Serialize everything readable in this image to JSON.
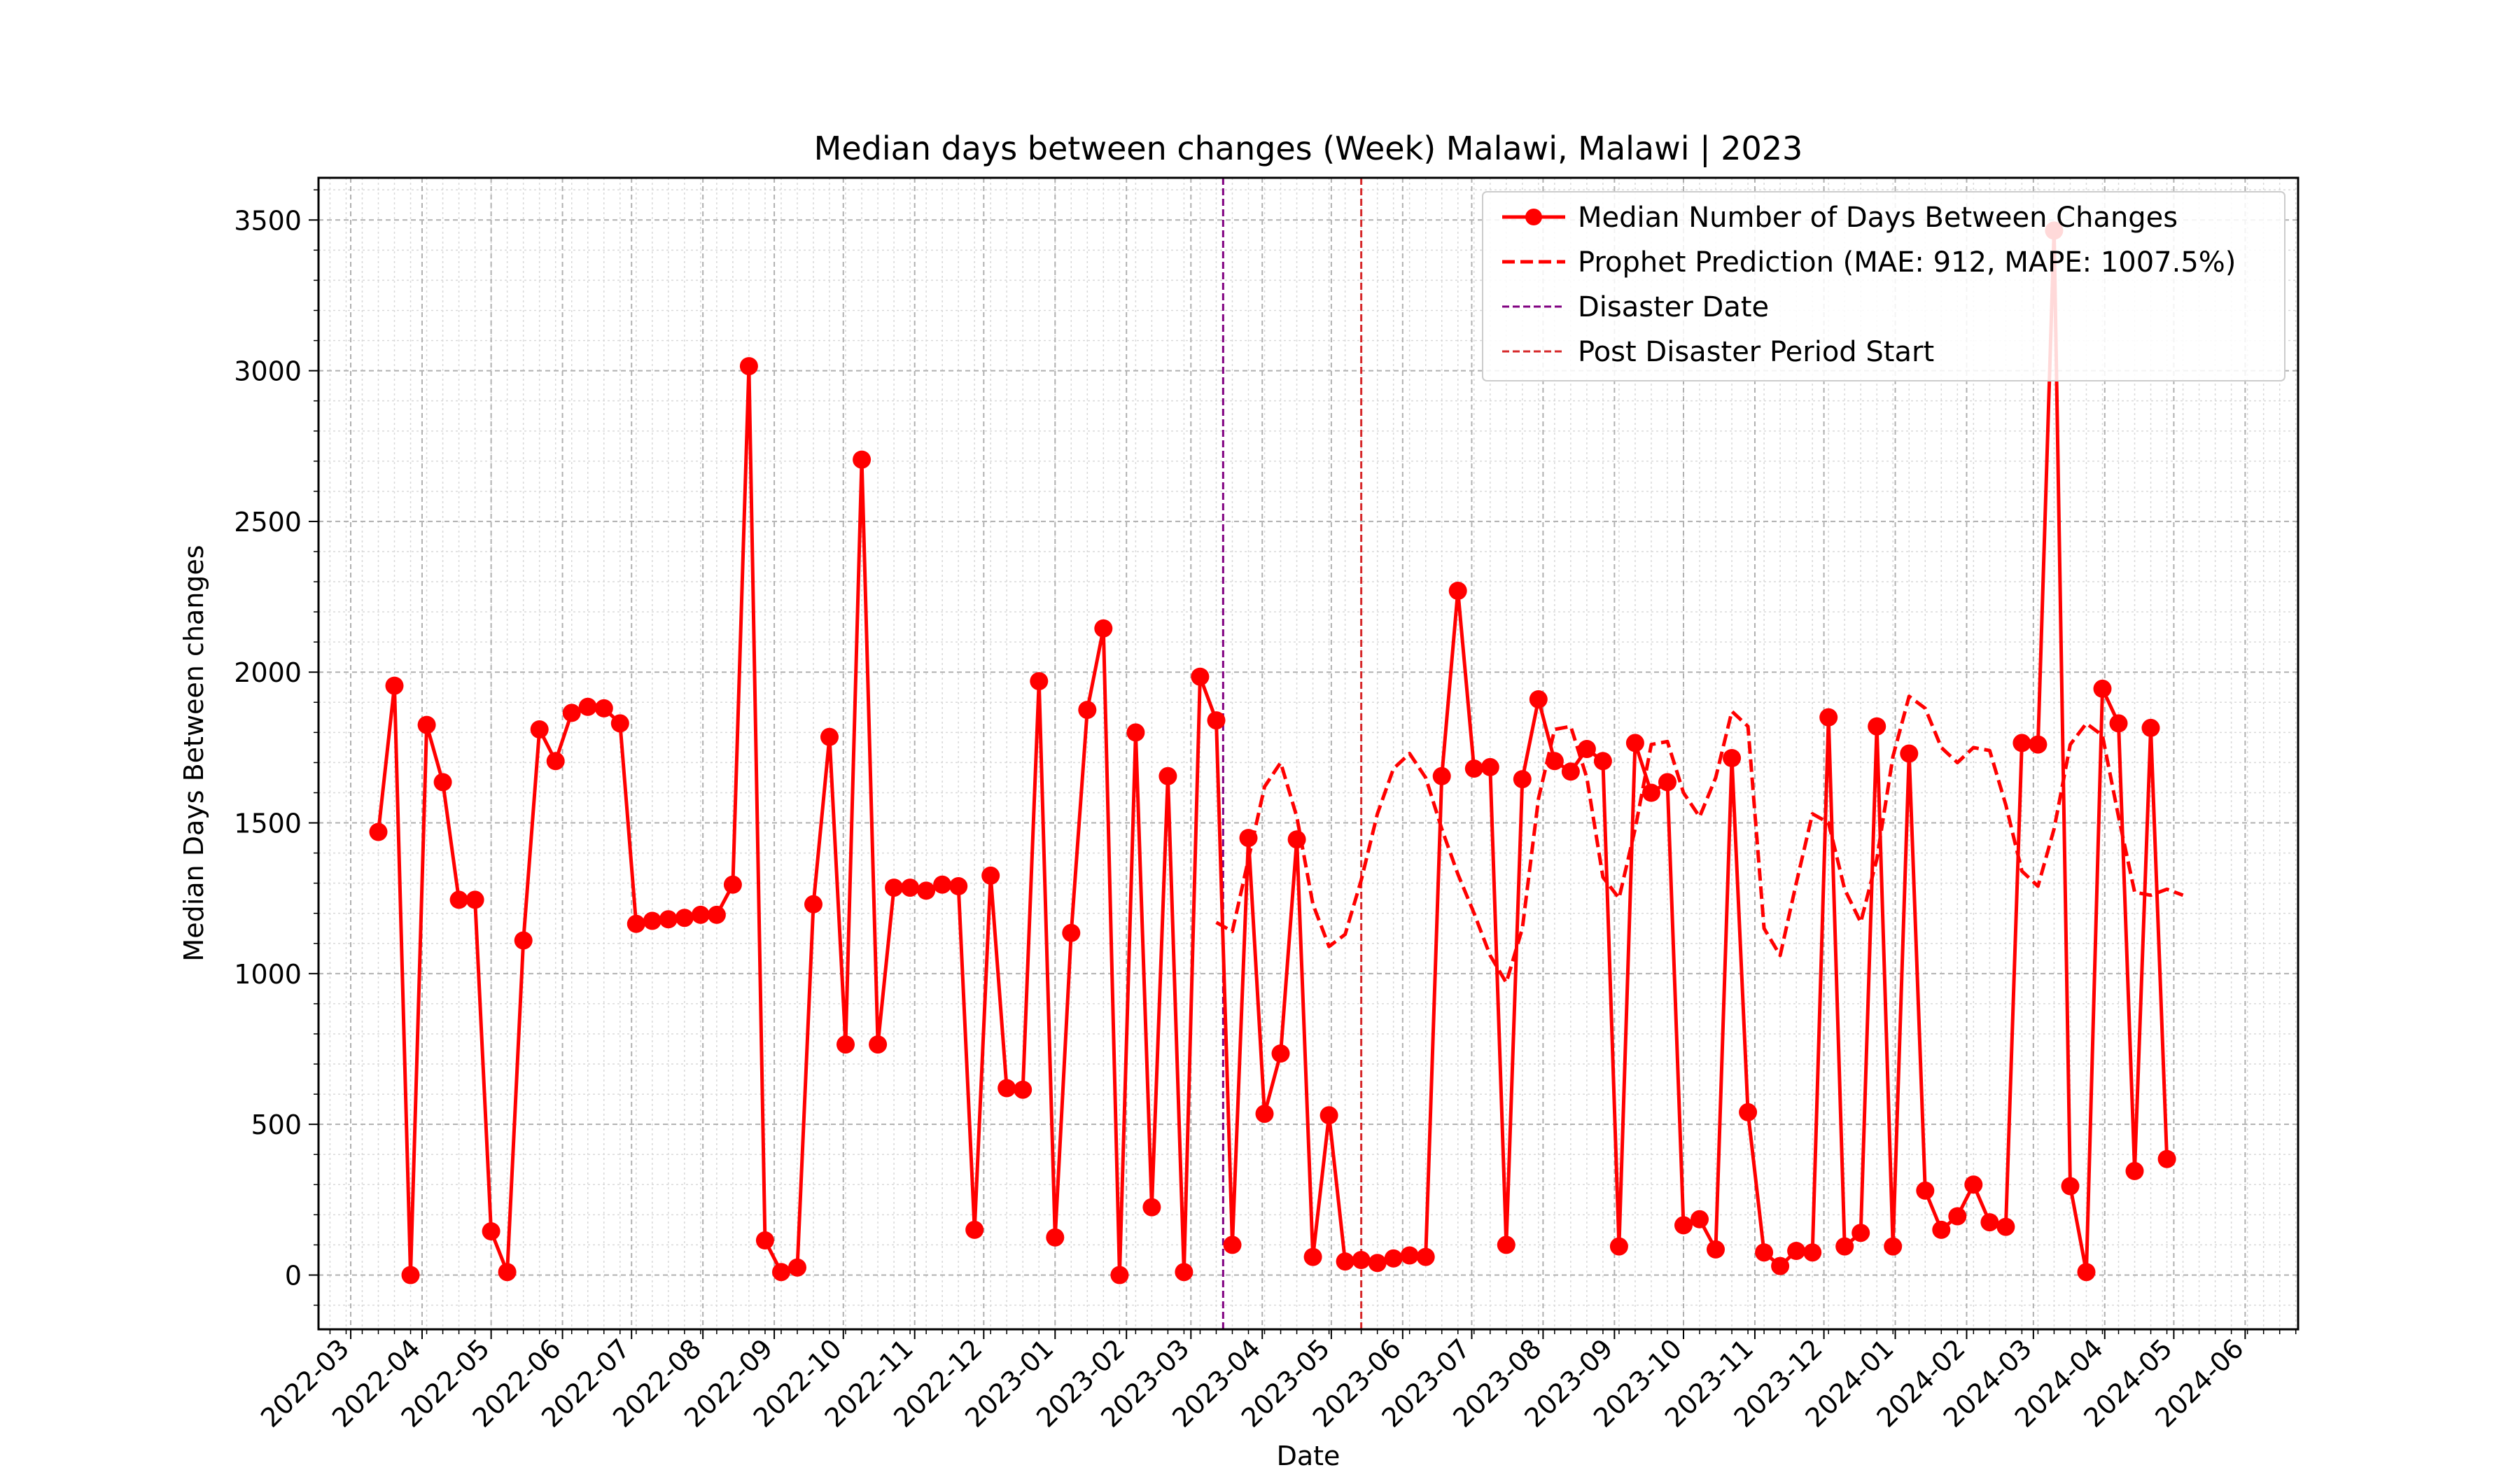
{
  "chart_data": {
    "type": "line",
    "title": "Median days between changes (Week) Malawi, Malawi | 2023",
    "xlabel": "Date",
    "ylabel": "Median Days Between changes",
    "xlim": [
      "2022-02-15",
      "2024-06-24"
    ],
    "ylim": [
      -180,
      3640
    ],
    "yticks": [
      0,
      500,
      1000,
      1500,
      2000,
      2500,
      3000,
      3500
    ],
    "xticks": [
      "2022-03",
      "2022-04",
      "2022-05",
      "2022-06",
      "2022-07",
      "2022-08",
      "2022-09",
      "2022-10",
      "2022-11",
      "2022-12",
      "2023-01",
      "2023-02",
      "2023-03",
      "2023-04",
      "2023-05",
      "2023-06",
      "2023-07",
      "2023-08",
      "2023-09",
      "2023-10",
      "2023-11",
      "2023-12",
      "2024-01",
      "2024-02",
      "2024-03",
      "2024-04",
      "2024-05",
      "2024-06"
    ],
    "grid": true,
    "legend_position": "top-right",
    "colors": {
      "actual": "#ff0000",
      "prediction": "#ff0000",
      "disaster": "#800080",
      "post_disaster": "#d62728"
    },
    "series": [
      {
        "name": "Median Number of Days Between Changes",
        "style": "solid line with markers",
        "x": [
          "2022-03-13",
          "2022-03-20",
          "2022-03-27",
          "2022-04-03",
          "2022-04-10",
          "2022-04-17",
          "2022-04-24",
          "2022-05-01",
          "2022-05-08",
          "2022-05-15",
          "2022-05-22",
          "2022-05-29",
          "2022-06-05",
          "2022-06-12",
          "2022-06-19",
          "2022-06-26",
          "2022-07-03",
          "2022-07-10",
          "2022-07-17",
          "2022-07-24",
          "2022-07-31",
          "2022-08-07",
          "2022-08-14",
          "2022-08-21",
          "2022-08-28",
          "2022-09-04",
          "2022-09-11",
          "2022-09-18",
          "2022-09-25",
          "2022-10-02",
          "2022-10-09",
          "2022-10-16",
          "2022-10-23",
          "2022-10-30",
          "2022-11-06",
          "2022-11-13",
          "2022-11-20",
          "2022-11-27",
          "2022-12-04",
          "2022-12-11",
          "2022-12-18",
          "2022-12-25",
          "2023-01-01",
          "2023-01-08",
          "2023-01-15",
          "2023-01-22",
          "2023-01-29",
          "2023-02-05",
          "2023-02-12",
          "2023-02-19",
          "2023-02-26",
          "2023-03-05",
          "2023-03-12",
          "2023-03-19",
          "2023-03-26",
          "2023-04-02",
          "2023-04-09",
          "2023-04-16",
          "2023-04-23",
          "2023-04-30",
          "2023-05-07",
          "2023-05-14",
          "2023-05-21",
          "2023-05-28",
          "2023-06-04",
          "2023-06-11",
          "2023-06-18",
          "2023-06-25",
          "2023-07-02",
          "2023-07-09",
          "2023-07-16",
          "2023-07-23",
          "2023-07-30",
          "2023-08-06",
          "2023-08-13",
          "2023-08-20",
          "2023-08-27",
          "2023-09-03",
          "2023-09-10",
          "2023-09-17",
          "2023-09-24",
          "2023-10-01",
          "2023-10-08",
          "2023-10-15",
          "2023-10-22",
          "2023-10-29",
          "2023-11-05",
          "2023-11-12",
          "2023-11-19",
          "2023-11-26",
          "2023-12-03",
          "2023-12-10",
          "2023-12-17",
          "2023-12-24",
          "2023-12-31",
          "2024-01-07",
          "2024-01-14",
          "2024-01-21",
          "2024-01-28",
          "2024-02-04",
          "2024-02-11",
          "2024-02-18",
          "2024-02-25",
          "2024-03-03",
          "2024-03-10",
          "2024-03-17",
          "2024-03-24",
          "2024-03-31",
          "2024-04-07",
          "2024-04-14",
          "2024-04-21",
          "2024-04-28"
        ],
        "values": [
          1470,
          1955,
          0,
          1825,
          1635,
          1245,
          1245,
          145,
          10,
          1110,
          1810,
          1705,
          1865,
          1885,
          1880,
          1830,
          1165,
          1175,
          1180,
          1185,
          1195,
          1195,
          1295,
          3015,
          115,
          10,
          25,
          1230,
          1785,
          765,
          2705,
          765,
          1285,
          1285,
          1275,
          1295,
          1290,
          150,
          1325,
          620,
          615,
          1970,
          125,
          1135,
          1875,
          2145,
          0,
          1800,
          225,
          1655,
          10,
          1985,
          1840,
          100,
          1450,
          535,
          735,
          1445,
          60,
          530,
          45,
          50,
          40,
          55,
          65,
          60,
          1655,
          2270,
          1680,
          1685,
          100,
          1645,
          1910,
          1705,
          1670,
          1745,
          1705,
          95,
          1765,
          1600,
          1635,
          165,
          185,
          85,
          1715,
          540,
          75,
          30,
          80,
          75,
          1850,
          95,
          140,
          1820,
          95,
          1730,
          280,
          150,
          195,
          300,
          175,
          160,
          1765,
          1760,
          3465,
          295,
          10,
          1945,
          1830,
          345,
          1815,
          385
        ]
      },
      {
        "name": "Prophet Prediction (MAE: 912, MAPE: 1007.5%)",
        "style": "dashed line",
        "x": [
          "2023-03-12",
          "2023-03-19",
          "2023-03-26",
          "2023-04-02",
          "2023-04-09",
          "2023-04-16",
          "2023-04-23",
          "2023-04-30",
          "2023-05-07",
          "2023-05-14",
          "2023-05-21",
          "2023-05-28",
          "2023-06-04",
          "2023-06-11",
          "2023-06-18",
          "2023-06-25",
          "2023-07-02",
          "2023-07-09",
          "2023-07-16",
          "2023-07-23",
          "2023-07-30",
          "2023-08-06",
          "2023-08-13",
          "2023-08-20",
          "2023-08-27",
          "2023-09-03",
          "2023-09-10",
          "2023-09-17",
          "2023-09-24",
          "2023-10-01",
          "2023-10-08",
          "2023-10-15",
          "2023-10-22",
          "2023-10-29",
          "2023-11-05",
          "2023-11-12",
          "2023-11-19",
          "2023-11-26",
          "2023-12-03",
          "2023-12-10",
          "2023-12-17",
          "2023-12-24",
          "2023-12-31",
          "2024-01-07",
          "2024-01-14",
          "2024-01-21",
          "2024-01-28",
          "2024-02-04",
          "2024-02-11",
          "2024-02-18",
          "2024-02-25",
          "2024-03-03",
          "2024-03-10",
          "2024-03-17",
          "2024-03-24",
          "2024-03-31",
          "2024-04-07",
          "2024-04-14",
          "2024-04-21",
          "2024-04-28",
          "2024-05-05"
        ],
        "values": [
          1170,
          1140,
          1380,
          1620,
          1700,
          1520,
          1230,
          1090,
          1130,
          1310,
          1530,
          1680,
          1730,
          1650,
          1480,
          1330,
          1200,
          1060,
          970,
          1150,
          1580,
          1810,
          1820,
          1650,
          1320,
          1250,
          1480,
          1760,
          1770,
          1600,
          1520,
          1650,
          1870,
          1820,
          1150,
          1060,
          1300,
          1530,
          1500,
          1280,
          1170,
          1380,
          1720,
          1920,
          1880,
          1750,
          1700,
          1750,
          1740,
          1560,
          1340,
          1290,
          1480,
          1760,
          1830,
          1790,
          1520,
          1270,
          1260,
          1280,
          1260
        ]
      }
    ],
    "reference_lines": [
      {
        "name": "Disaster Date",
        "x": "2023-03-15",
        "style": "dashed",
        "color": "#800080"
      },
      {
        "name": "Post Disaster Period Start",
        "x": "2023-05-14",
        "style": "dashed",
        "color": "#d62728"
      }
    ],
    "legend": [
      "Median Number of Days Between Changes",
      "Prophet Prediction (MAE: 912, MAPE: 1007.5%)",
      "Disaster Date",
      "Post Disaster Period Start"
    ]
  }
}
